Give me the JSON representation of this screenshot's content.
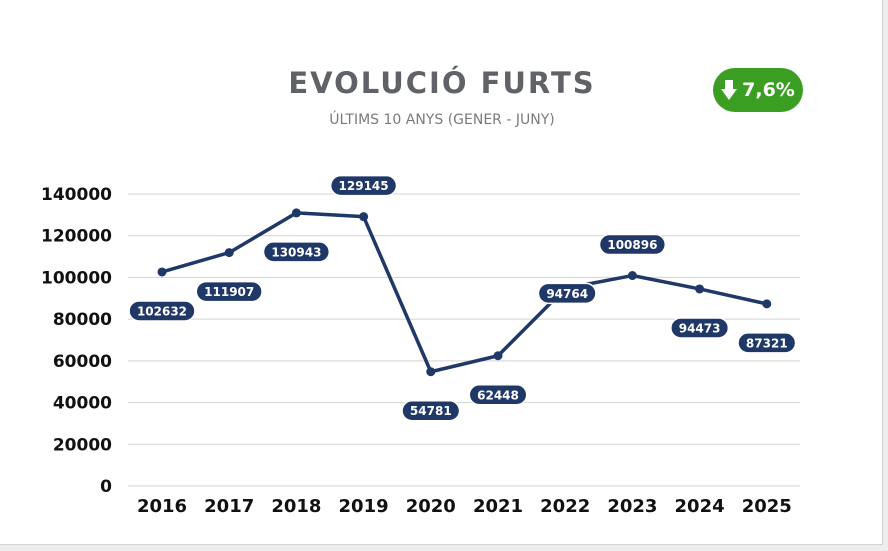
{
  "badge": {
    "text": "7,6%",
    "direction": "down",
    "icon": "arrow-down-icon",
    "color": "#3a9e22"
  },
  "colors": {
    "line": "#1f3868",
    "grid": "#d3d3d3",
    "label_bg": "#1f3868"
  },
  "chart_data": {
    "type": "line",
    "title": "EVOLUCIÓ FURTS",
    "subtitle": "ÚLTIMS 10 ANYS (GENER - JUNY)",
    "xlabel": "",
    "ylabel": "",
    "categories": [
      "2016",
      "2017",
      "2018",
      "2019",
      "2020",
      "2021",
      "2022",
      "2023",
      "2024",
      "2025"
    ],
    "series": [
      {
        "values": [
          102632,
          111907,
          130943,
          129145,
          54781,
          62448,
          94764,
          100896,
          94473,
          87321
        ]
      }
    ],
    "ylim": [
      0,
      140000
    ],
    "yticks": [
      0,
      20000,
      40000,
      60000,
      80000,
      100000,
      120000,
      140000
    ],
    "label_position": [
      "below",
      "below",
      "below",
      "above",
      "below",
      "below",
      "on",
      "above",
      "below",
      "below"
    ],
    "grid": true,
    "legend": "none"
  }
}
